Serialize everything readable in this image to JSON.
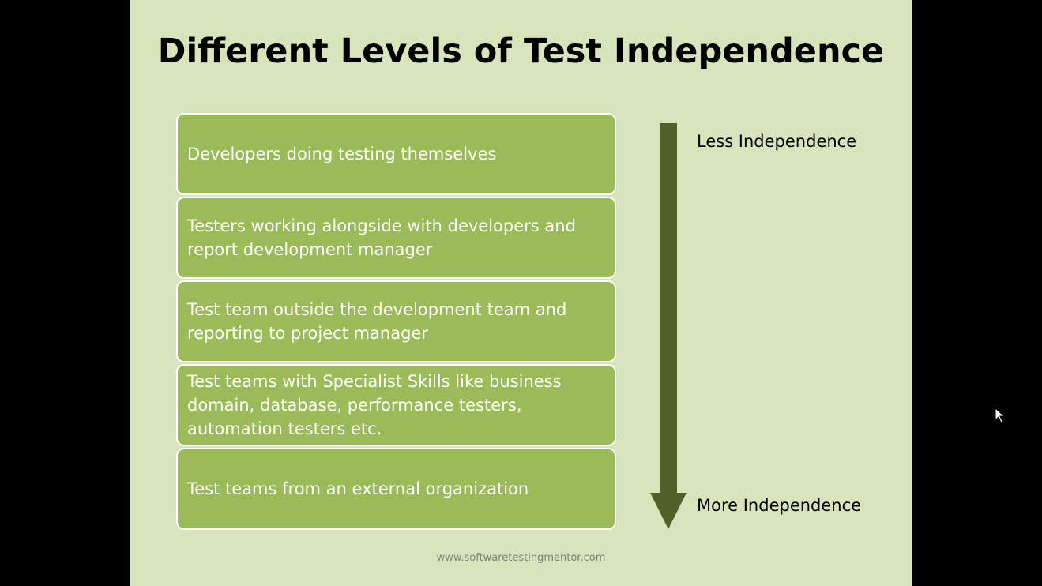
{
  "slide": {
    "title": "Different Levels of Test Independence",
    "levels": [
      "Developers doing testing themselves",
      "Testers  working alongside with developers and report development manager",
      "Test team outside the development team and reporting to project manager",
      "Test teams with Specialist Skills like business domain, database, performance testers, automation testers etc.",
      "Test teams from an external organization"
    ],
    "top_label": "Less Independence",
    "bottom_label": "More Independence",
    "footer": "www.softwaretestingmentor.com"
  },
  "colors": {
    "slide_background": "#d8e4bc",
    "box_fill": "#9bbb59",
    "arrow_fill": "#4f6228",
    "screen_background": "#000000"
  },
  "icons": {
    "arrow": "down-arrow-icon",
    "cursor": "mouse-pointer-icon"
  }
}
